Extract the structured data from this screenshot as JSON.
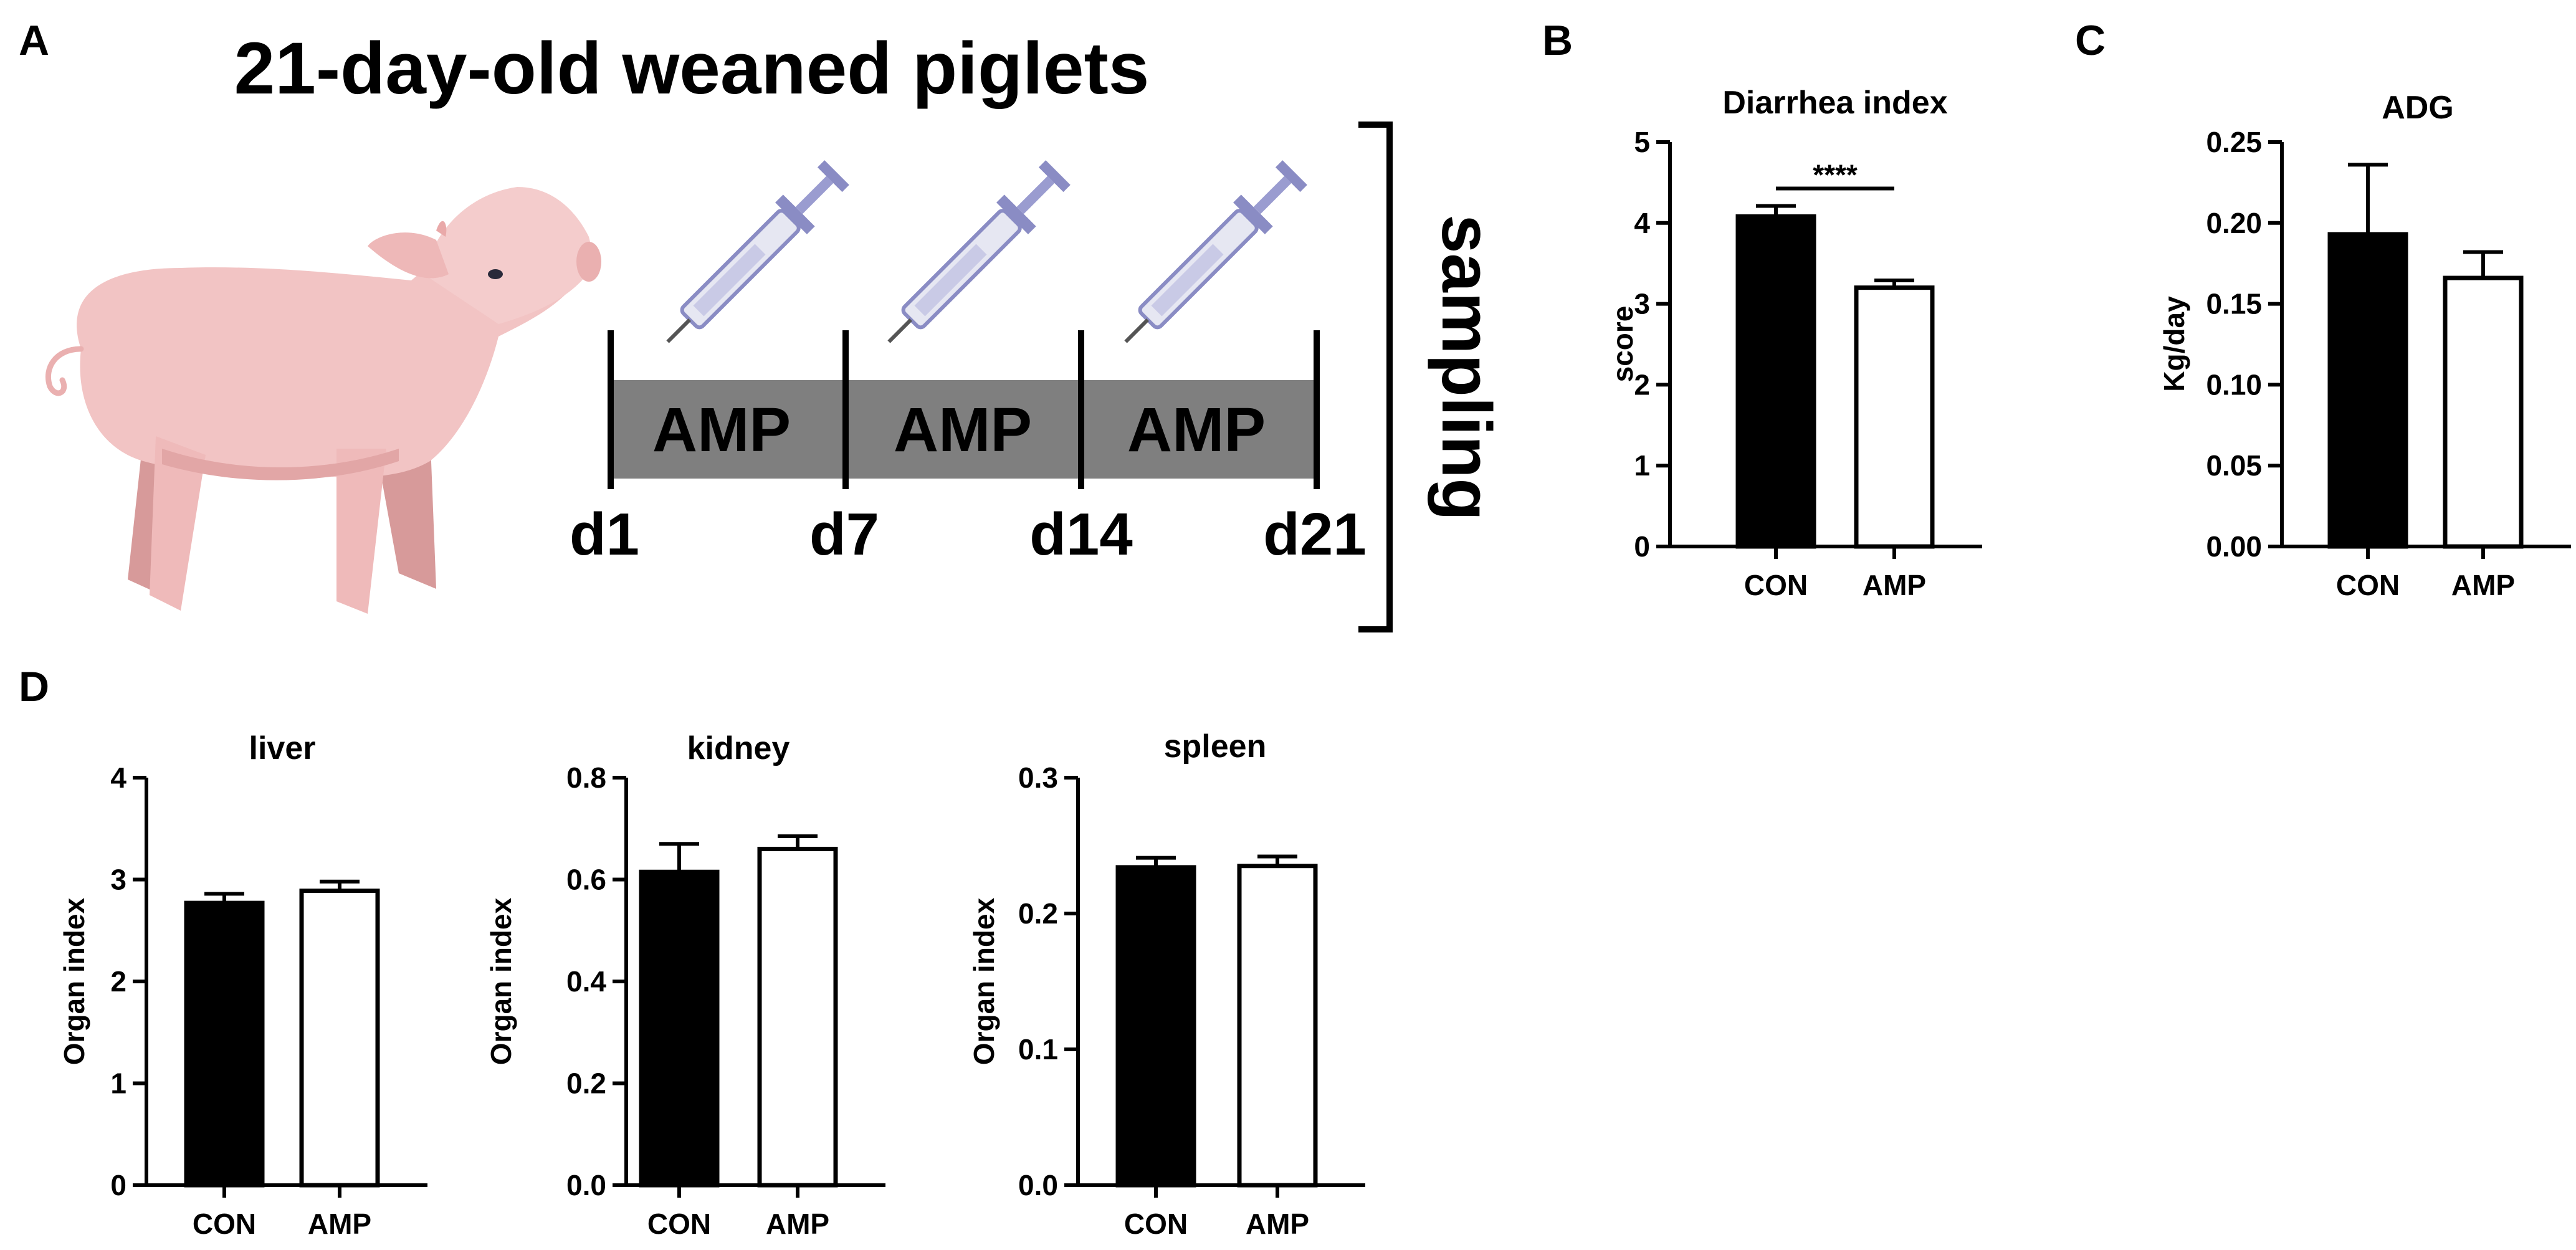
{
  "panels": {
    "a": "A",
    "b": "B",
    "c": "C",
    "d": "D"
  },
  "schematic": {
    "title": "21-day-old weaned piglets",
    "segments": [
      "AMP",
      "AMP",
      "AMP"
    ],
    "days": [
      "d1",
      "d7",
      "d14",
      "d21"
    ],
    "sampling": "sampling",
    "colors": {
      "bar": "#7f7f7f",
      "pig": "#f2c4c4",
      "pig_shadow": "#d79a9a",
      "syringe": "#8a8cc4"
    }
  },
  "colors": {
    "con": "#000000",
    "amp": "#ffffff",
    "axis": "#000000"
  },
  "chart_data": [
    {
      "id": "diarrhea",
      "type": "bar",
      "title": "Diarrhea index",
      "xlabel": "",
      "ylabel": "score",
      "categories": [
        "CON",
        "AMP"
      ],
      "values": [
        4.08,
        3.2
      ],
      "errors": [
        0.13,
        0.09
      ],
      "ylim": [
        0,
        5
      ],
      "yticks": [
        "0",
        "1",
        "2",
        "3",
        "4",
        "5"
      ],
      "annotation": "****"
    },
    {
      "id": "adg",
      "type": "bar",
      "title": "ADG",
      "xlabel": "",
      "ylabel": "Kg/day",
      "categories": [
        "CON",
        "AMP"
      ],
      "values": [
        0.193,
        0.166
      ],
      "errors": [
        0.043,
        0.016
      ],
      "ylim": [
        0,
        0.25
      ],
      "yticks": [
        "0.00",
        "0.05",
        "0.10",
        "0.15",
        "0.20",
        "0.25"
      ]
    },
    {
      "id": "liver",
      "type": "bar",
      "title": "liver",
      "xlabel": "",
      "ylabel": "Organ index",
      "categories": [
        "CON",
        "AMP"
      ],
      "values": [
        2.77,
        2.89
      ],
      "errors": [
        0.09,
        0.09
      ],
      "ylim": [
        0,
        4
      ],
      "yticks": [
        "0",
        "1",
        "2",
        "3",
        "4"
      ]
    },
    {
      "id": "kidney",
      "type": "bar",
      "title": "kidney",
      "xlabel": "",
      "ylabel": "Organ index",
      "categories": [
        "CON",
        "AMP"
      ],
      "values": [
        0.615,
        0.66
      ],
      "errors": [
        0.055,
        0.025
      ],
      "ylim": [
        0,
        0.8
      ],
      "yticks": [
        "0.0",
        "0.2",
        "0.4",
        "0.6",
        "0.8"
      ]
    },
    {
      "id": "spleen",
      "type": "bar",
      "title": "spleen",
      "xlabel": "",
      "ylabel": "Organ index",
      "categories": [
        "CON",
        "AMP"
      ],
      "values": [
        0.234,
        0.235
      ],
      "errors": [
        0.007,
        0.007
      ],
      "ylim": [
        0,
        0.3
      ],
      "yticks": [
        "0.0",
        "0.1",
        "0.2",
        "0.3"
      ]
    }
  ]
}
